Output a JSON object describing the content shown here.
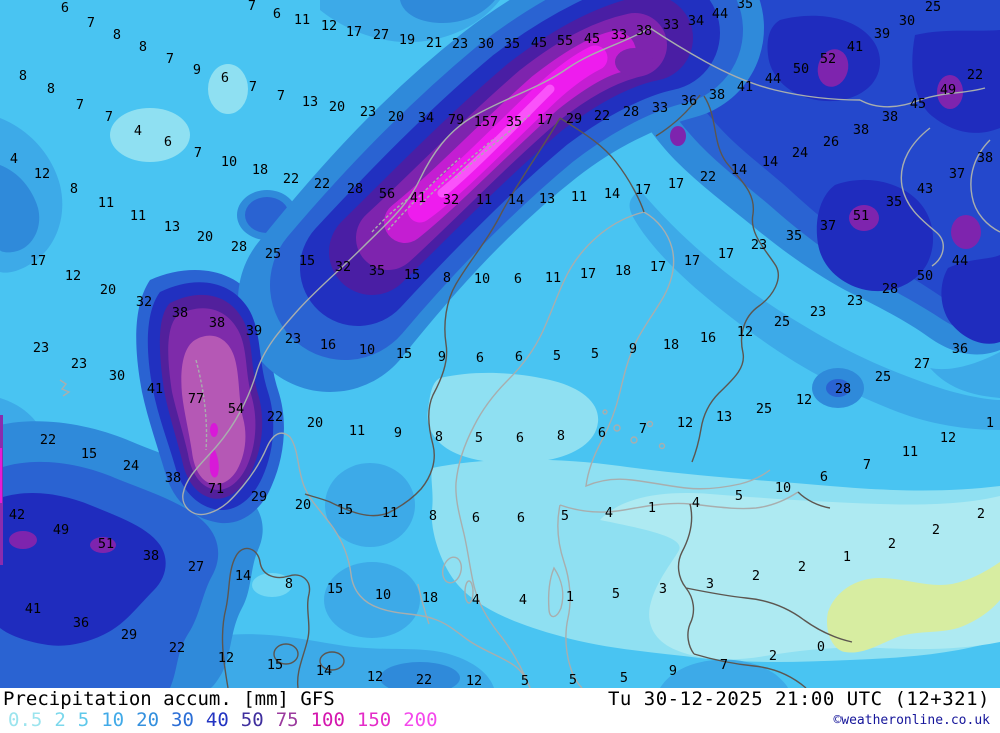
{
  "footer": {
    "title": "Precipitation accum. [mm] GFS",
    "timestamp": "Tu 30-12-2025 21:00 UTC (12+321)",
    "credit": "©weatheronline.co.uk",
    "scale": [
      {
        "label": "0.5",
        "color": "#9be4ee"
      },
      {
        "label": "2",
        "color": "#7cd8ec"
      },
      {
        "label": "5",
        "color": "#5ec8ea"
      },
      {
        "label": "10",
        "color": "#41aae8"
      },
      {
        "label": "20",
        "color": "#3490de"
      },
      {
        "label": "30",
        "color": "#2b6ed6"
      },
      {
        "label": "40",
        "color": "#2334c2"
      },
      {
        "label": "50",
        "color": "#3f2f9e"
      },
      {
        "label": "75",
        "color": "#9b3a9e"
      },
      {
        "label": "100",
        "color": "#d416ae"
      },
      {
        "label": "150",
        "color": "#e42cc8"
      },
      {
        "label": "200",
        "color": "#f448ec"
      }
    ]
  },
  "map": {
    "type": "filled-contour precipitation map",
    "region": "Scandinavia / Baltic",
    "value_color": "#000000",
    "palette": {
      "lt0.5": "#d7eda1",
      "0.5-2": "#aeeaf2",
      "2-5": "#8fe0f2",
      "5-10": "#49c4f2",
      "10-20": "#3daae8",
      "20-30": "#2f8ada",
      "30-40": "#2a63d2",
      "40-50": "#2130c0",
      "50-75": "#52209c",
      "75-100": "#7e2baa",
      "100-150": "#b558b5",
      "150-200": "#d819d8",
      "gt200": "#fa52fa",
      "coast_line": "#a8aeae",
      "border_line": "#5c5650"
    },
    "values": [
      [
        65,
        8,
        6
      ],
      [
        91,
        23,
        7
      ],
      [
        117,
        35,
        8
      ],
      [
        143,
        47,
        8
      ],
      [
        170,
        59,
        7
      ],
      [
        197,
        70,
        9
      ],
      [
        225,
        78,
        6
      ],
      [
        253,
        87,
        7
      ],
      [
        281,
        96,
        7
      ],
      [
        310,
        102,
        13
      ],
      [
        252,
        6,
        7
      ],
      [
        277,
        14,
        6
      ],
      [
        302,
        20,
        11
      ],
      [
        329,
        26,
        12
      ],
      [
        23,
        76,
        8
      ],
      [
        51,
        89,
        8
      ],
      [
        80,
        105,
        7
      ],
      [
        109,
        117,
        7
      ],
      [
        138,
        131,
        4
      ],
      [
        168,
        142,
        6
      ],
      [
        198,
        153,
        7
      ],
      [
        229,
        162,
        10
      ],
      [
        260,
        170,
        18
      ],
      [
        291,
        179,
        22
      ],
      [
        322,
        184,
        22
      ],
      [
        14,
        159,
        4
      ],
      [
        42,
        174,
        12
      ],
      [
        74,
        189,
        8
      ],
      [
        106,
        203,
        11
      ],
      [
        138,
        216,
        11
      ],
      [
        172,
        227,
        13
      ],
      [
        354,
        32,
        17
      ],
      [
        381,
        35,
        27
      ],
      [
        407,
        40,
        19
      ],
      [
        434,
        43,
        21
      ],
      [
        460,
        44,
        23
      ],
      [
        486,
        44,
        30
      ],
      [
        512,
        44,
        35
      ],
      [
        539,
        43,
        45
      ],
      [
        565,
        41,
        55
      ],
      [
        592,
        39,
        45
      ],
      [
        619,
        35,
        33
      ],
      [
        644,
        31,
        38
      ],
      [
        671,
        25,
        33
      ],
      [
        696,
        21,
        34
      ],
      [
        720,
        14,
        44
      ],
      [
        745,
        4,
        35
      ],
      [
        337,
        107,
        20
      ],
      [
        368,
        112,
        23
      ],
      [
        396,
        117,
        20
      ],
      [
        426,
        118,
        34
      ],
      [
        456,
        120,
        79
      ],
      [
        486,
        122,
        157
      ],
      [
        514,
        122,
        35
      ],
      [
        545,
        120,
        17
      ],
      [
        574,
        119,
        29
      ],
      [
        602,
        116,
        22
      ],
      [
        631,
        112,
        28
      ],
      [
        660,
        108,
        33
      ],
      [
        355,
        189,
        28
      ],
      [
        387,
        194,
        56
      ],
      [
        418,
        198,
        41
      ],
      [
        451,
        200,
        32
      ],
      [
        484,
        200,
        11
      ],
      [
        516,
        200,
        14
      ],
      [
        547,
        199,
        13
      ],
      [
        579,
        197,
        11
      ],
      [
        612,
        194,
        14
      ],
      [
        643,
        190,
        17
      ],
      [
        933,
        7,
        25
      ],
      [
        907,
        21,
        30
      ],
      [
        882,
        34,
        39
      ],
      [
        855,
        47,
        41
      ],
      [
        828,
        59,
        52
      ],
      [
        801,
        69,
        50
      ],
      [
        773,
        79,
        44
      ],
      [
        745,
        87,
        41
      ],
      [
        717,
        95,
        38
      ],
      [
        689,
        101,
        36
      ],
      [
        975,
        75,
        22
      ],
      [
        948,
        90,
        49
      ],
      [
        918,
        104,
        45
      ],
      [
        890,
        117,
        38
      ],
      [
        861,
        130,
        38
      ],
      [
        831,
        142,
        26
      ],
      [
        800,
        153,
        24
      ],
      [
        770,
        162,
        14
      ],
      [
        739,
        170,
        14
      ],
      [
        708,
        177,
        22
      ],
      [
        676,
        184,
        17
      ],
      [
        985,
        158,
        38
      ],
      [
        957,
        174,
        37
      ],
      [
        925,
        189,
        43
      ],
      [
        894,
        202,
        35
      ],
      [
        861,
        216,
        51
      ],
      [
        828,
        226,
        37
      ],
      [
        205,
        237,
        20
      ],
      [
        239,
        247,
        28
      ],
      [
        273,
        254,
        25
      ],
      [
        307,
        261,
        15
      ],
      [
        38,
        261,
        17
      ],
      [
        73,
        276,
        12
      ],
      [
        108,
        290,
        20
      ],
      [
        144,
        302,
        32
      ],
      [
        180,
        313,
        38
      ],
      [
        217,
        323,
        38
      ],
      [
        254,
        331,
        39
      ],
      [
        293,
        339,
        23
      ],
      [
        328,
        345,
        16
      ],
      [
        41,
        348,
        23
      ],
      [
        79,
        364,
        23
      ],
      [
        117,
        376,
        30
      ],
      [
        155,
        389,
        41
      ],
      [
        196,
        399,
        77
      ],
      [
        236,
        409,
        54
      ],
      [
        275,
        417,
        22
      ],
      [
        315,
        423,
        20
      ],
      [
        48,
        440,
        22
      ],
      [
        89,
        454,
        15
      ],
      [
        343,
        267,
        32
      ],
      [
        377,
        271,
        35
      ],
      [
        412,
        275,
        15
      ],
      [
        447,
        278,
        8
      ],
      [
        482,
        279,
        10
      ],
      [
        518,
        279,
        6
      ],
      [
        553,
        278,
        11
      ],
      [
        588,
        274,
        17
      ],
      [
        623,
        271,
        18
      ],
      [
        658,
        267,
        17
      ],
      [
        367,
        350,
        10
      ],
      [
        404,
        354,
        15
      ],
      [
        442,
        357,
        9
      ],
      [
        480,
        358,
        6
      ],
      [
        519,
        357,
        6
      ],
      [
        557,
        356,
        5
      ],
      [
        595,
        354,
        5
      ],
      [
        633,
        349,
        9
      ],
      [
        671,
        345,
        18
      ],
      [
        357,
        431,
        11
      ],
      [
        398,
        433,
        9
      ],
      [
        439,
        437,
        8
      ],
      [
        479,
        438,
        5
      ],
      [
        520,
        438,
        6
      ],
      [
        561,
        436,
        8
      ],
      [
        602,
        433,
        6
      ],
      [
        643,
        429,
        7
      ],
      [
        794,
        236,
        35
      ],
      [
        759,
        245,
        23
      ],
      [
        726,
        254,
        17
      ],
      [
        692,
        261,
        17
      ],
      [
        960,
        261,
        44
      ],
      [
        925,
        276,
        50
      ],
      [
        890,
        289,
        28
      ],
      [
        855,
        301,
        23
      ],
      [
        818,
        312,
        23
      ],
      [
        782,
        322,
        25
      ],
      [
        745,
        332,
        12
      ],
      [
        708,
        338,
        16
      ],
      [
        960,
        349,
        36
      ],
      [
        922,
        364,
        27
      ],
      [
        883,
        377,
        25
      ],
      [
        843,
        389,
        28
      ],
      [
        804,
        400,
        12
      ],
      [
        764,
        409,
        25
      ],
      [
        724,
        417,
        13
      ],
      [
        685,
        423,
        12
      ],
      [
        990,
        423,
        1
      ],
      [
        948,
        438,
        12
      ],
      [
        910,
        452,
        11
      ],
      [
        131,
        466,
        24
      ],
      [
        173,
        478,
        38
      ],
      [
        216,
        489,
        71
      ],
      [
        259,
        497,
        29
      ],
      [
        303,
        505,
        20
      ],
      [
        17,
        515,
        42
      ],
      [
        61,
        530,
        49
      ],
      [
        106,
        544,
        51
      ],
      [
        151,
        556,
        38
      ],
      [
        196,
        567,
        27
      ],
      [
        243,
        576,
        14
      ],
      [
        289,
        584,
        8
      ],
      [
        335,
        589,
        15
      ],
      [
        33,
        609,
        41
      ],
      [
        81,
        623,
        36
      ],
      [
        129,
        635,
        29
      ],
      [
        177,
        648,
        22
      ],
      [
        226,
        658,
        12
      ],
      [
        275,
        665,
        15
      ],
      [
        324,
        671,
        14
      ],
      [
        345,
        510,
        15
      ],
      [
        390,
        513,
        11
      ],
      [
        433,
        516,
        8
      ],
      [
        476,
        518,
        6
      ],
      [
        521,
        518,
        6
      ],
      [
        565,
        516,
        5
      ],
      [
        609,
        513,
        4
      ],
      [
        652,
        508,
        1
      ],
      [
        383,
        595,
        10
      ],
      [
        430,
        598,
        18
      ],
      [
        476,
        600,
        4
      ],
      [
        523,
        600,
        4
      ],
      [
        570,
        597,
        1
      ],
      [
        616,
        594,
        5
      ],
      [
        663,
        589,
        3
      ],
      [
        375,
        677,
        12
      ],
      [
        424,
        680,
        22
      ],
      [
        474,
        681,
        12
      ],
      [
        525,
        681,
        5
      ],
      [
        573,
        680,
        5
      ],
      [
        624,
        678,
        5
      ],
      [
        867,
        465,
        7
      ],
      [
        824,
        477,
        6
      ],
      [
        783,
        488,
        10
      ],
      [
        739,
        496,
        5
      ],
      [
        696,
        503,
        4
      ],
      [
        981,
        514,
        2
      ],
      [
        936,
        530,
        2
      ],
      [
        892,
        544,
        2
      ],
      [
        847,
        557,
        1
      ],
      [
        802,
        567,
        2
      ],
      [
        756,
        576,
        2
      ],
      [
        710,
        584,
        3
      ],
      [
        821,
        647,
        0
      ],
      [
        773,
        656,
        2
      ],
      [
        724,
        665,
        7
      ],
      [
        673,
        671,
        9
      ]
    ]
  }
}
